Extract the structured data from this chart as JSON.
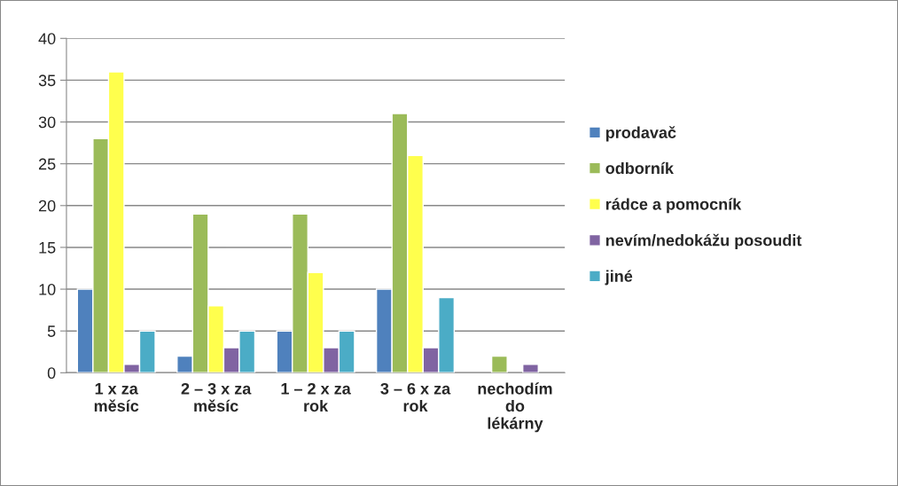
{
  "chart_data": {
    "type": "bar",
    "categories": [
      "1 x za\nměsíc",
      "2 – 3 x za\nměsíc",
      "1 – 2 x za\nrok",
      "3 – 6 x za\nrok",
      "nechodím\ndo\nlékárny"
    ],
    "series": [
      {
        "name": "prodavač",
        "color": "#4f81bd",
        "values": [
          10,
          2,
          5,
          10,
          null
        ]
      },
      {
        "name": "odborník",
        "color": "#9bbb59",
        "values": [
          28,
          19,
          19,
          31,
          2
        ]
      },
      {
        "name": "rádce a pomocník",
        "color": "#ffff4d",
        "values": [
          36,
          8,
          12,
          26,
          null
        ]
      },
      {
        "name": "nevím/nedokážu posoudit",
        "color": "#8064a2",
        "values": [
          1,
          3,
          3,
          3,
          1
        ]
      },
      {
        "name": "jiné",
        "color": "#4bacc6",
        "values": [
          5,
          5,
          5,
          9,
          null
        ]
      }
    ],
    "ylim": [
      0,
      40
    ],
    "yticks": [
      0,
      5,
      10,
      15,
      20,
      25,
      30,
      35,
      40
    ],
    "grid": "y",
    "legend": "right"
  }
}
